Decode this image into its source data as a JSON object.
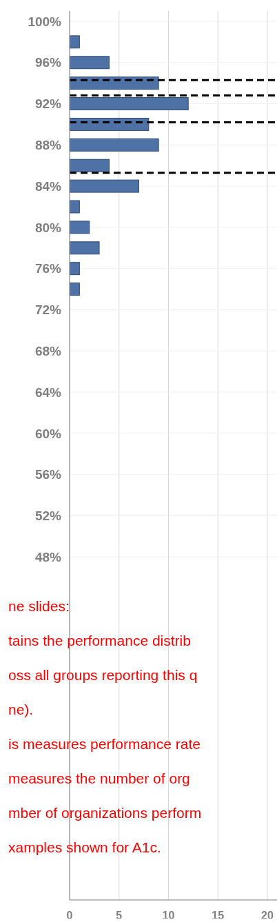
{
  "chart_data": {
    "type": "histogram",
    "orientation": "horizontal",
    "color": "#4e72a6",
    "bins": [
      73,
      75,
      77,
      79,
      81,
      83,
      85,
      87,
      89,
      91,
      93,
      95,
      97,
      99
    ],
    "values": [
      1,
      1,
      3,
      2,
      1,
      7,
      4,
      9,
      8,
      12,
      9,
      4,
      1
    ],
    "ylim": [
      14.7,
      101
    ],
    "yticks": [
      {
        "value": 48,
        "label": "48%"
      },
      {
        "value": 52,
        "label": "52%"
      },
      {
        "value": 56,
        "label": "56%"
      },
      {
        "value": 60,
        "label": "60%"
      },
      {
        "value": 64,
        "label": "64%"
      },
      {
        "value": 68,
        "label": "68%"
      },
      {
        "value": 72,
        "label": "72%"
      },
      {
        "value": 76,
        "label": "76%"
      },
      {
        "value": 80,
        "label": "80%"
      },
      {
        "value": 84,
        "label": "84%"
      },
      {
        "value": 88,
        "label": "88%"
      },
      {
        "value": 92,
        "label": "92%"
      },
      {
        "value": 96,
        "label": "96%"
      },
      {
        "value": 100,
        "label": "100%"
      }
    ],
    "xlim": [
      0,
      20
    ],
    "xticks": [
      0,
      5,
      10,
      15,
      20
    ],
    "grid": true,
    "ref_lines": [
      {
        "axis": "y",
        "value": 94.3,
        "color": "#000000",
        "line_style": "dashed"
      },
      {
        "axis": "y",
        "value": 92.8,
        "color": "#000000",
        "line_style": "dashed"
      },
      {
        "axis": "y",
        "value": 90.2,
        "color": "#000000",
        "line_style": "dashed"
      },
      {
        "axis": "y",
        "value": 85.3,
        "color": "#000000",
        "line_style": "dashed"
      }
    ],
    "annotations": [
      "ne slides:",
      "tains the performance distrib",
      "oss all groups reporting this q",
      "ne).",
      "is measures performance rate",
      "measures the number of org",
      "mber of organizations perform",
      "xamples shown for A1c."
    ]
  }
}
